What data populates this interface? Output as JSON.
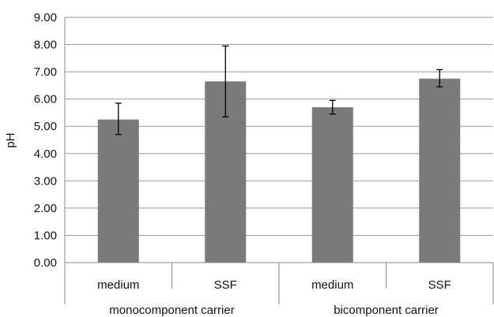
{
  "chart_data": {
    "type": "bar",
    "title": "",
    "xlabel": "",
    "ylabel": "pH",
    "ylim": [
      0,
      9
    ],
    "y_ticks": [
      "0.00",
      "1.00",
      "2.00",
      "3.00",
      "4.00",
      "5.00",
      "6.00",
      "7.00",
      "8.00",
      "9.00"
    ],
    "grid": "horizontal",
    "legend": "none",
    "categories": [
      "medium",
      "SSF",
      "medium",
      "SSF"
    ],
    "groups": [
      {
        "label": "monocomponent carrier",
        "categories": [
          "medium",
          "SSF"
        ]
      },
      {
        "label": "bicomponent carrier",
        "categories": [
          "medium",
          "SSF"
        ]
      }
    ],
    "values": [
      5.25,
      6.65,
      5.7,
      6.75
    ],
    "error_low": [
      4.7,
      5.35,
      5.45,
      6.45
    ],
    "error_high": [
      5.85,
      7.95,
      5.95,
      7.08
    ],
    "colors": {
      "bar": "#7a7a7a",
      "grid": "#9a9a9a",
      "axis": "#8a8a8a",
      "error": "#000000"
    }
  }
}
